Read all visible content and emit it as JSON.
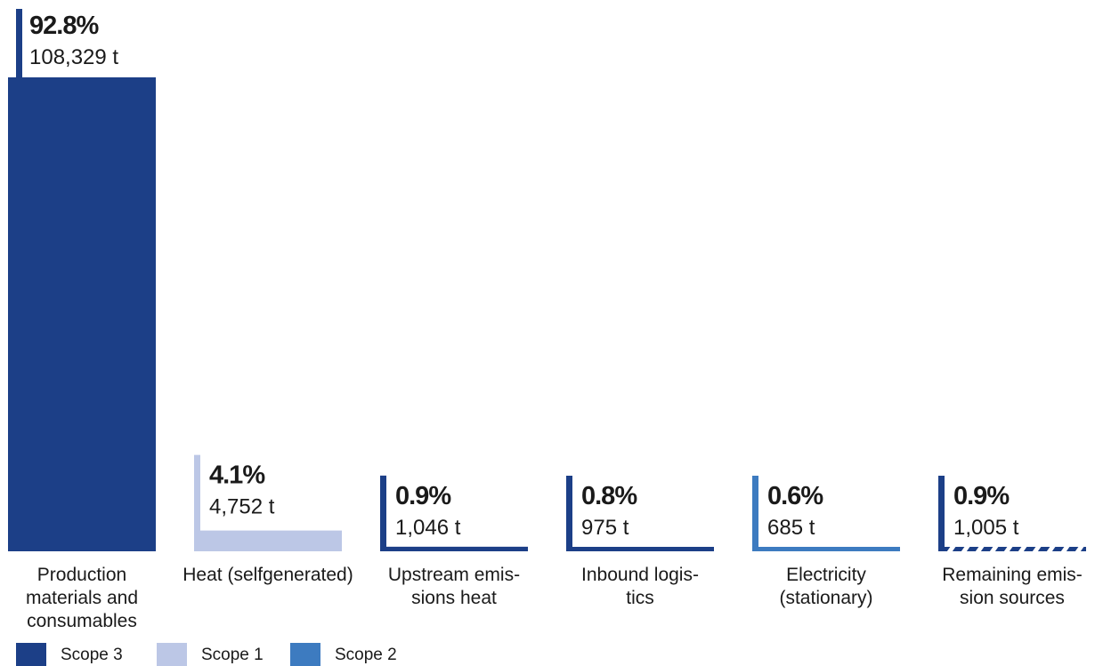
{
  "chart_data": {
    "type": "bar",
    "unit": "t",
    "categories": [
      "Production materials and consumables",
      "Heat (selfgenerated)",
      "Upstream emissions heat",
      "Inbound logistics",
      "Electricity (stationary)",
      "Remaining emission sources"
    ],
    "category_labels": [
      "Production\nmaterials and\nconsumables",
      "Heat (selfgenerated)",
      "Upstream emis-\nsions heat",
      "Inbound logis-\ntics",
      "Electricity\n(stationary)",
      "Remaining emis-\nsion sources"
    ],
    "values": [
      108329,
      4752,
      1046,
      975,
      685,
      1005
    ],
    "value_labels": [
      "108,329 t",
      "4,752 t",
      "1,046 t",
      "975 t",
      "685 t",
      "1,005 t"
    ],
    "percent_labels": [
      "92.8%",
      "4.1%",
      "0.9%",
      "0.8%",
      "0.6%",
      "0.9%"
    ],
    "scopes": [
      "Scope 3",
      "Scope 1",
      "Scope 3",
      "Scope 3",
      "Scope 2",
      "Scope 3"
    ],
    "pattern": [
      "solid",
      "solid",
      "solid",
      "solid",
      "solid",
      "striped"
    ],
    "legend": [
      {
        "label": "Scope 3",
        "color": "#1c3f87"
      },
      {
        "label": "Scope 1",
        "color": "#bcc7e6"
      },
      {
        "label": "Scope 2",
        "color": "#3d7bc0"
      }
    ],
    "ylim": [
      0,
      108329
    ],
    "grid": false,
    "legend_position": "bottom-left"
  }
}
